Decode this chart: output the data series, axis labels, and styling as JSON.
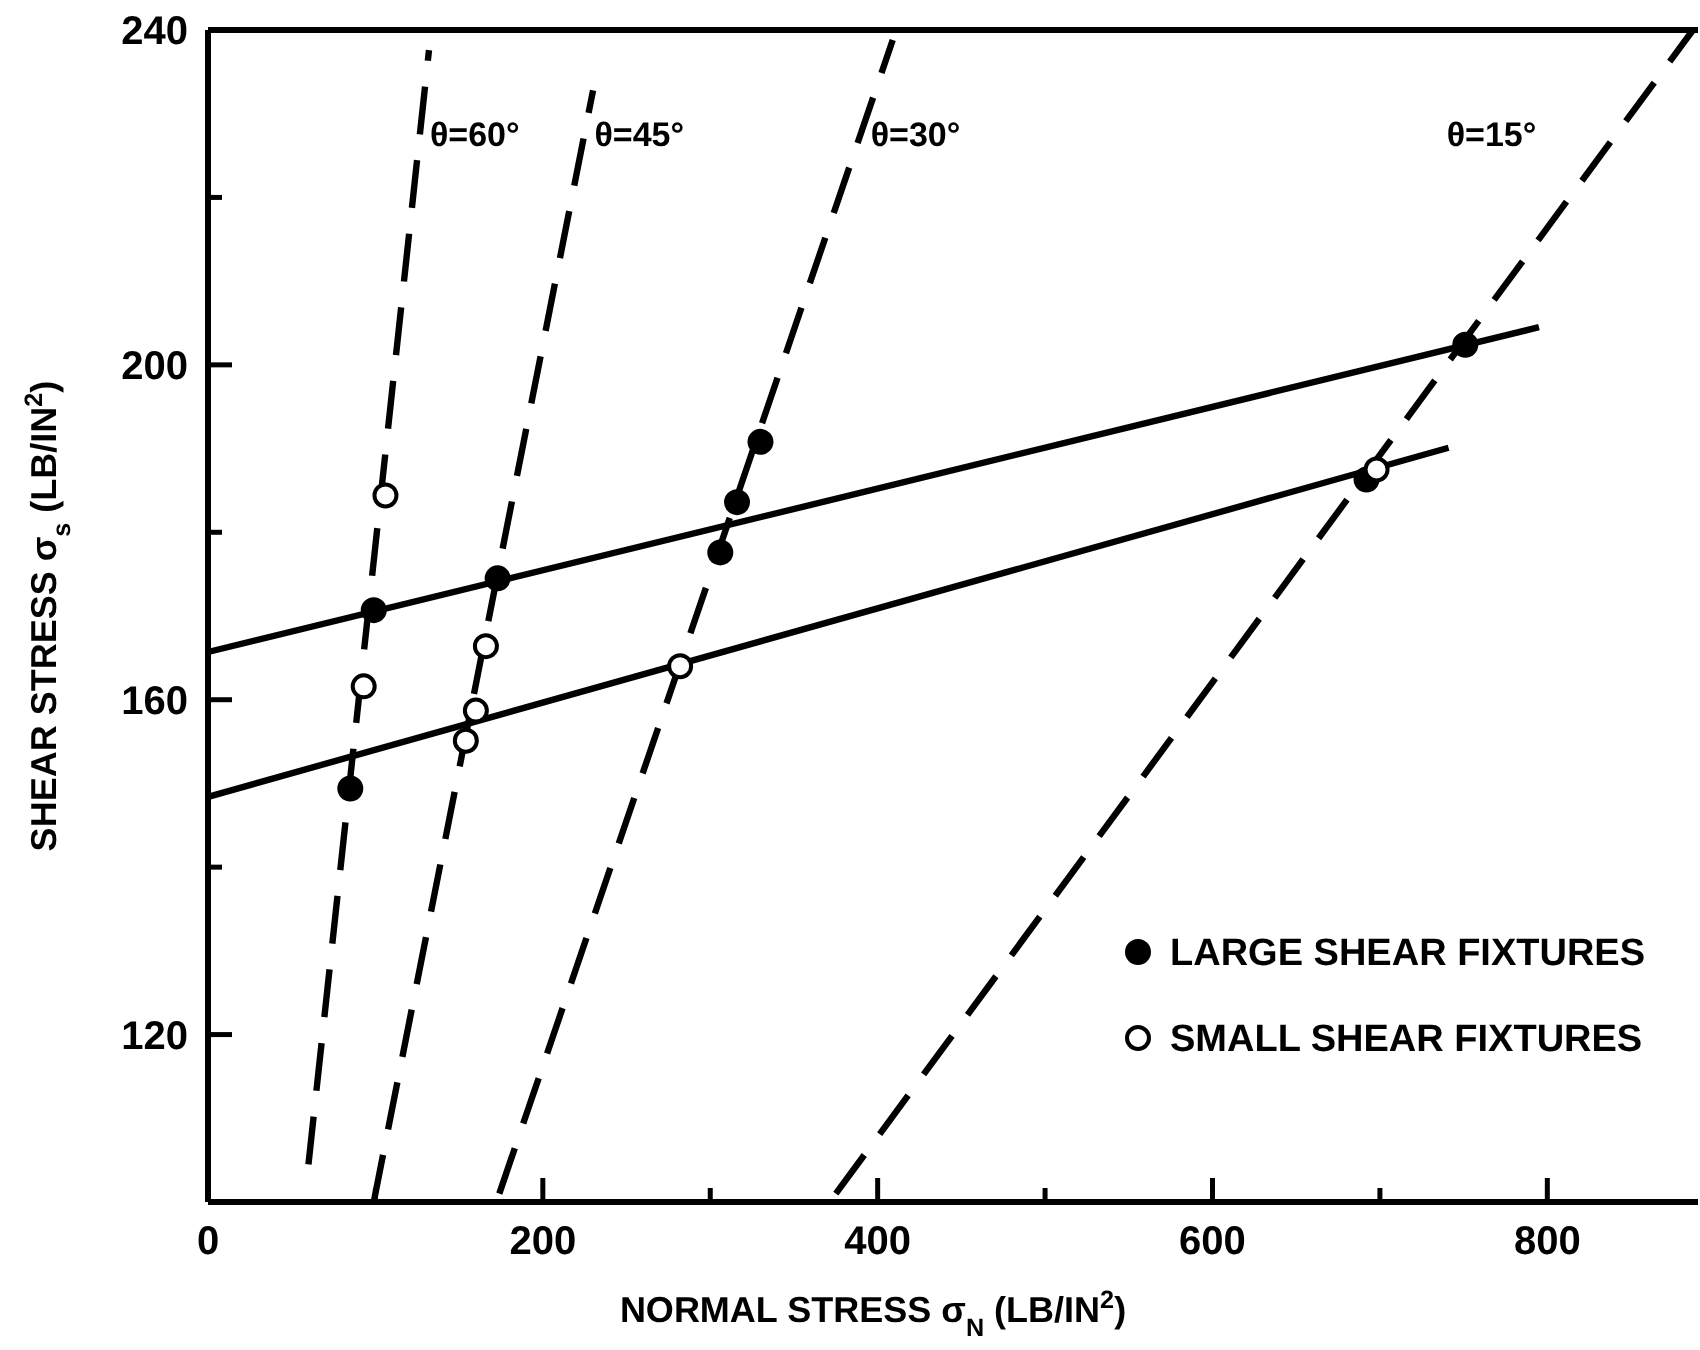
{
  "chart_data": {
    "type": "scatter",
    "xlabel": "NORMAL STRESS σ$_{N}$ (LB/IN$^{2}$)",
    "ylabel": "SHEAR STRESS σ$_{s}$ (LB/IN$^{2}$)",
    "xlim": [
      0,
      890
    ],
    "ylim": [
      100,
      240
    ],
    "xticks": [
      0,
      {
        "value": 100,
        "label": null
      },
      200,
      {
        "value": 300,
        "label": null
      },
      400,
      {
        "value": 500,
        "label": null
      },
      600,
      {
        "value": 700,
        "label": null
      },
      800
    ],
    "yticks": [
      {
        "value": 100,
        "label": null
      },
      120,
      {
        "value": 140,
        "label": null
      },
      160,
      {
        "value": 180,
        "label": null
      },
      200,
      {
        "value": 220,
        "label": null
      },
      240
    ],
    "legend": "bottom right",
    "series": [
      {
        "type": "line",
        "line_style": "solid",
        "color": "#000000",
        "x": [
          0,
          795
        ],
        "values": [
          165.7,
          204.5
        ]
      },
      {
        "type": "line",
        "line_style": "solid",
        "color": "#000000",
        "x": [
          0,
          741
        ],
        "values": [
          148.4,
          190.1
        ]
      },
      {
        "type": "line",
        "name": "θ=60°",
        "line_style": "dashed",
        "color": "#000000",
        "x": [
          60,
          132
        ],
        "values": [
          104.5,
          237.6
        ]
      },
      {
        "type": "line",
        "name": "θ=45°",
        "line_style": "dashed",
        "color": "#000000",
        "x": [
          99,
          230
        ],
        "values": [
          100,
          232.8
        ]
      },
      {
        "type": "line",
        "name": "θ=30°",
        "line_style": "dashed",
        "color": "#000000",
        "x": [
          174,
          409
        ],
        "values": [
          101,
          238.8
        ]
      },
      {
        "type": "line",
        "name": "θ=15°",
        "line_style": "dashed",
        "color": "#000000",
        "x": [
          375,
          887
        ],
        "values": [
          101,
          240
        ]
      },
      {
        "name": "LARGE SHEAR FIXTURES",
        "marker": "circle",
        "color": "#000000",
        "x": [
          85,
          99,
          173,
          306,
          316,
          330,
          692,
          751
        ],
        "values": [
          149.4,
          170.7,
          174.5,
          177.6,
          183.6,
          190.8,
          186.3,
          202.4
        ]
      },
      {
        "name": "SMALL SHEAR FIXTURES",
        "marker": "circle",
        "color": "#ffffff",
        "x": [
          93,
          106,
          154,
          160,
          166,
          282,
          698
        ],
        "values": [
          161.6,
          184.4,
          155.1,
          158.7,
          166.4,
          164,
          187.5
        ]
      }
    ]
  }
}
